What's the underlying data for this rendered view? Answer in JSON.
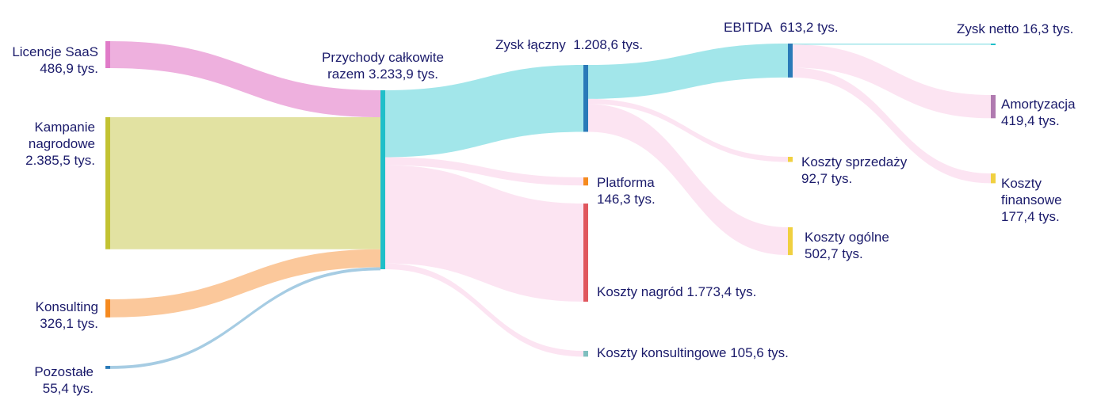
{
  "chart_data": {
    "type": "sankey",
    "title": "",
    "nodes": [
      {
        "id": "saas",
        "name": "Licencje SaaS",
        "value_label": "486,9 tys.",
        "value": 486.9,
        "color": "#e07bc8"
      },
      {
        "id": "kampanie",
        "name": "Kampanie nagrodowe",
        "value_label": "2.385,5 tys.",
        "value": 2385.5,
        "color": "#c2c232"
      },
      {
        "id": "konsulting",
        "name": "Konsulting",
        "value_label": "326,1 tys.",
        "value": 326.1,
        "color": "#f58a1f"
      },
      {
        "id": "pozostale",
        "name": "Pozostałe",
        "value_label": "55,4 tys.",
        "value": 55.4,
        "color": "#2a7ab8"
      },
      {
        "id": "przychody",
        "name": "Przychody całkowite razem",
        "value_label": "3.233,9 tys.",
        "value": 3233.9,
        "color": "#1fbfc9"
      },
      {
        "id": "zysk",
        "name": "Zysk łączny",
        "value_label": "1.208,6 tys.",
        "value": 1208.6,
        "color": "#2a7ab8"
      },
      {
        "id": "platforma",
        "name": "Platforma",
        "value_label": "146,3 tys.",
        "value": 146.3,
        "color": "#f58a1f"
      },
      {
        "id": "nagrody",
        "name": "Koszty nagród",
        "value_label": "1.773,4 tys.",
        "value": 1773.4,
        "color": "#e0575e"
      },
      {
        "id": "konsultingowe",
        "name": "Koszty konsultingowe",
        "value_label": "105,6 tys.",
        "value": 105.6,
        "color": "#7fbfbf"
      },
      {
        "id": "ebitda",
        "name": "EBITDA",
        "value_label": "613,2 tys.",
        "value": 613.2,
        "color": "#2a7ab8"
      },
      {
        "id": "sprzedazy",
        "name": "Koszty sprzedaży",
        "value_label": "92,7 tys.",
        "value": 92.7,
        "color": "#f0d040"
      },
      {
        "id": "ogolne",
        "name": "Koszty ogólne",
        "value_label": "502,7 tys.",
        "value": 502.7,
        "color": "#f0d040"
      },
      {
        "id": "netto",
        "name": "Zysk netto",
        "value_label": "16,3 tys.",
        "value": 16.3,
        "color": "#1fbfc9"
      },
      {
        "id": "amortyzacja",
        "name": "Amortyzacja",
        "value_label": "419,4 tys.",
        "value": 419.4,
        "color": "#b07ab0"
      },
      {
        "id": "finansowe",
        "name": "Koszty finansowe",
        "value_label": "177,4 tys.",
        "value": 177.4,
        "color": "#f0d040"
      }
    ],
    "links": [
      {
        "source": "saas",
        "target": "przychody",
        "value": 486.9,
        "color": "#eeb0de"
      },
      {
        "source": "kampanie",
        "target": "przychody",
        "value": 2385.5,
        "color": "#e2e2a2"
      },
      {
        "source": "konsulting",
        "target": "przychody",
        "value": 326.1,
        "color": "#fbc89b"
      },
      {
        "source": "pozostale",
        "target": "przychody",
        "value": 55.4,
        "color": "#a6cce3"
      },
      {
        "source": "przychody",
        "target": "zysk",
        "value": 1208.6,
        "color": "#a2e6ea"
      },
      {
        "source": "przychody",
        "target": "platforma",
        "value": 146.3,
        "color": "#fce4f2"
      },
      {
        "source": "przychody",
        "target": "nagrody",
        "value": 1773.4,
        "color": "#fce4f2"
      },
      {
        "source": "przychody",
        "target": "konsultingowe",
        "value": 105.6,
        "color": "#fce4f2"
      },
      {
        "source": "zysk",
        "target": "ebitda",
        "value": 613.2,
        "color": "#a2e6ea"
      },
      {
        "source": "zysk",
        "target": "sprzedazy",
        "value": 92.7,
        "color": "#fce4f2"
      },
      {
        "source": "zysk",
        "target": "ogolne",
        "value": 502.7,
        "color": "#fce4f2"
      },
      {
        "source": "ebitda",
        "target": "netto",
        "value": 16.3,
        "color": "#a2e6ea"
      },
      {
        "source": "ebitda",
        "target": "amortyzacja",
        "value": 419.4,
        "color": "#fce4f2"
      },
      {
        "source": "ebitda",
        "target": "finansowe",
        "value": 177.4,
        "color": "#fce4f2"
      }
    ]
  }
}
